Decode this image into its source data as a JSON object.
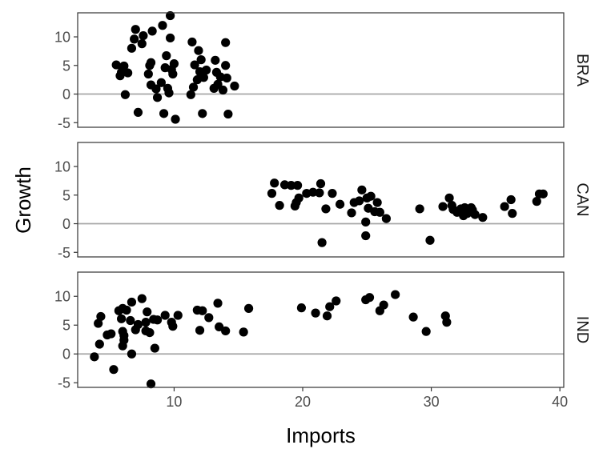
{
  "chart_data": {
    "type": "scatter",
    "facet_layout": "rows",
    "xlabel": "Imports",
    "ylabel": "Growth",
    "xlim": [
      2.5,
      40.3
    ],
    "ylim": [
      -5.8,
      14.2
    ],
    "x_ticks": [
      10,
      20,
      30,
      40
    ],
    "y_ticks": [
      -5,
      0,
      5,
      10
    ],
    "reference_line_y": 0,
    "grid": false,
    "colors": {
      "points": "#000000",
      "reference_line": "#a6a6a6",
      "panel_border": "#333333",
      "tick_text": "#4d4d4d"
    },
    "facets": [
      {
        "label": "BRA",
        "points": [
          [
            5.5,
            5.1
          ],
          [
            5.8,
            3.2
          ],
          [
            5.9,
            3.8
          ],
          [
            6.0,
            4.6
          ],
          [
            6.1,
            4.9
          ],
          [
            6.2,
            -0.1
          ],
          [
            6.4,
            3.7
          ],
          [
            6.7,
            8.0
          ],
          [
            6.9,
            9.6
          ],
          [
            7.0,
            11.3
          ],
          [
            7.2,
            -3.2
          ],
          [
            7.5,
            8.8
          ],
          [
            7.6,
            10.2
          ],
          [
            8.0,
            3.5
          ],
          [
            8.1,
            5.0
          ],
          [
            8.2,
            5.5
          ],
          [
            8.2,
            1.6
          ],
          [
            8.3,
            11.0
          ],
          [
            8.6,
            0.9
          ],
          [
            8.7,
            -0.6
          ],
          [
            9.0,
            2.0
          ],
          [
            9.1,
            12.0
          ],
          [
            9.2,
            -3.4
          ],
          [
            9.3,
            4.6
          ],
          [
            9.4,
            6.7
          ],
          [
            9.5,
            1.0
          ],
          [
            9.6,
            0.2
          ],
          [
            9.7,
            13.7
          ],
          [
            9.7,
            9.8
          ],
          [
            9.8,
            4.3
          ],
          [
            9.9,
            3.5
          ],
          [
            10.0,
            5.3
          ],
          [
            10.1,
            -4.4
          ],
          [
            11.3,
            -0.1
          ],
          [
            11.4,
            9.1
          ],
          [
            11.5,
            1.2
          ],
          [
            11.6,
            5.1
          ],
          [
            11.8,
            2.5
          ],
          [
            11.9,
            7.6
          ],
          [
            12.0,
            3.9
          ],
          [
            12.1,
            6.0
          ],
          [
            12.2,
            -3.4
          ],
          [
            12.3,
            2.9
          ],
          [
            12.5,
            4.2
          ],
          [
            13.1,
            1.0
          ],
          [
            13.2,
            5.9
          ],
          [
            13.3,
            3.8
          ],
          [
            13.4,
            1.7
          ],
          [
            13.6,
            3.0
          ],
          [
            13.8,
            0.7
          ],
          [
            14.0,
            5.0
          ],
          [
            14.0,
            9.0
          ],
          [
            14.1,
            2.8
          ],
          [
            14.2,
            -3.5
          ],
          [
            14.7,
            1.4
          ]
        ]
      },
      {
        "label": "CAN",
        "points": [
          [
            17.6,
            5.3
          ],
          [
            17.8,
            7.1
          ],
          [
            18.2,
            3.2
          ],
          [
            18.6,
            6.8
          ],
          [
            19.1,
            6.7
          ],
          [
            19.4,
            3.1
          ],
          [
            19.6,
            6.7
          ],
          [
            19.5,
            3.7
          ],
          [
            19.7,
            4.5
          ],
          [
            20.3,
            5.3
          ],
          [
            20.8,
            5.5
          ],
          [
            21.3,
            5.4
          ],
          [
            21.4,
            7.0
          ],
          [
            21.5,
            -3.3
          ],
          [
            21.8,
            2.6
          ],
          [
            22.3,
            5.3
          ],
          [
            22.9,
            3.4
          ],
          [
            23.8,
            1.9
          ],
          [
            24.0,
            3.7
          ],
          [
            24.4,
            4.0
          ],
          [
            24.6,
            5.9
          ],
          [
            24.9,
            -2.1
          ],
          [
            24.9,
            0.3
          ],
          [
            25.0,
            4.5
          ],
          [
            25.1,
            2.7
          ],
          [
            25.3,
            4.8
          ],
          [
            25.6,
            2.1
          ],
          [
            25.8,
            3.7
          ],
          [
            26.0,
            2.0
          ],
          [
            26.5,
            0.9
          ],
          [
            29.1,
            2.6
          ],
          [
            29.9,
            -2.9
          ],
          [
            30.9,
            3.0
          ],
          [
            31.4,
            4.5
          ],
          [
            31.6,
            3.2
          ],
          [
            31.7,
            2.5
          ],
          [
            32.0,
            2.0
          ],
          [
            32.3,
            2.6
          ],
          [
            32.5,
            1.4
          ],
          [
            32.6,
            2.8
          ],
          [
            32.8,
            1.8
          ],
          [
            33.1,
            2.8
          ],
          [
            33.2,
            2.4
          ],
          [
            33.4,
            1.6
          ],
          [
            34.0,
            1.1
          ],
          [
            35.7,
            3.0
          ],
          [
            36.2,
            4.2
          ],
          [
            36.3,
            1.8
          ],
          [
            38.2,
            3.9
          ],
          [
            38.4,
            5.2
          ],
          [
            38.7,
            5.2
          ]
        ]
      },
      {
        "label": "IND",
        "points": [
          [
            3.8,
            -0.5
          ],
          [
            4.1,
            5.3
          ],
          [
            4.2,
            1.7
          ],
          [
            4.3,
            6.5
          ],
          [
            4.8,
            3.3
          ],
          [
            5.1,
            3.5
          ],
          [
            5.3,
            -2.7
          ],
          [
            5.7,
            7.5
          ],
          [
            5.9,
            6.1
          ],
          [
            6.0,
            7.9
          ],
          [
            6.0,
            3.9
          ],
          [
            6.0,
            1.4
          ],
          [
            6.1,
            2.4
          ],
          [
            6.1,
            3.2
          ],
          [
            6.3,
            7.6
          ],
          [
            6.6,
            5.8
          ],
          [
            6.7,
            9.0
          ],
          [
            6.7,
            0.0
          ],
          [
            7.0,
            4.2
          ],
          [
            7.2,
            5.1
          ],
          [
            7.5,
            9.6
          ],
          [
            7.8,
            5.5
          ],
          [
            7.8,
            4.0
          ],
          [
            7.9,
            7.3
          ],
          [
            8.1,
            3.7
          ],
          [
            8.2,
            -5.2
          ],
          [
            8.4,
            6.0
          ],
          [
            8.5,
            1.0
          ],
          [
            8.7,
            5.9
          ],
          [
            9.3,
            6.7
          ],
          [
            9.8,
            5.5
          ],
          [
            9.9,
            4.8
          ],
          [
            10.3,
            6.7
          ],
          [
            11.8,
            7.6
          ],
          [
            12.0,
            4.1
          ],
          [
            12.2,
            7.5
          ],
          [
            12.7,
            6.3
          ],
          [
            13.4,
            8.8
          ],
          [
            13.5,
            4.7
          ],
          [
            14.0,
            4.0
          ],
          [
            15.4,
            3.8
          ],
          [
            15.8,
            7.9
          ],
          [
            19.9,
            8.0
          ],
          [
            21.0,
            7.1
          ],
          [
            21.9,
            6.6
          ],
          [
            22.1,
            8.2
          ],
          [
            22.6,
            9.2
          ],
          [
            24.9,
            9.4
          ],
          [
            25.2,
            9.8
          ],
          [
            26.0,
            7.5
          ],
          [
            26.3,
            8.5
          ],
          [
            27.2,
            10.3
          ],
          [
            28.6,
            6.4
          ],
          [
            29.6,
            3.9
          ],
          [
            31.1,
            6.6
          ],
          [
            31.2,
            5.5
          ]
        ]
      }
    ]
  }
}
